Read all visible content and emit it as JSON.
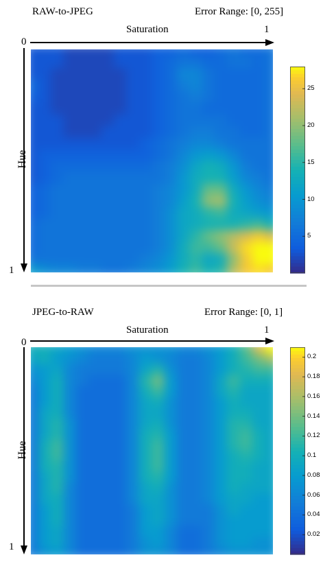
{
  "chart_data": [
    {
      "type": "heatmap",
      "title": "RAW-to-JPEG",
      "subtitle": "Error Range: [0, 255]",
      "xlabel": "Saturation",
      "ylabel": "Hue",
      "x_range": [
        0,
        1
      ],
      "y_range": [
        0,
        1
      ],
      "x_tick_labels": [
        "0",
        "1"
      ],
      "y_tick_labels": [
        "0",
        "1"
      ],
      "colormap": "parula",
      "colorbar": {
        "min": 0,
        "max": 28,
        "ticks": [
          5,
          10,
          15,
          20,
          25
        ]
      },
      "grid": false,
      "values": [
        [
          3,
          3,
          3,
          2,
          2,
          2,
          2,
          3,
          3,
          3,
          4,
          4,
          5,
          4,
          4,
          5,
          6,
          5,
          5,
          6
        ],
        [
          3,
          3,
          3,
          2,
          2,
          2,
          2,
          3,
          3,
          3,
          4,
          5,
          6,
          6,
          5,
          5,
          6,
          6,
          5,
          6
        ],
        [
          3,
          3,
          2,
          2,
          2,
          2,
          2,
          2,
          3,
          3,
          4,
          5,
          8,
          8,
          6,
          5,
          5,
          5,
          5,
          6
        ],
        [
          5,
          3,
          2,
          2,
          2,
          2,
          2,
          2,
          3,
          3,
          4,
          5,
          7,
          8,
          6,
          5,
          5,
          5,
          5,
          6
        ],
        [
          4,
          3,
          2,
          2,
          2,
          2,
          2,
          2,
          3,
          3,
          4,
          5,
          6,
          7,
          6,
          5,
          5,
          5,
          5,
          6
        ],
        [
          3,
          3,
          2,
          2,
          2,
          2,
          2,
          2,
          3,
          3,
          4,
          5,
          6,
          6,
          5,
          5,
          5,
          5,
          5,
          6
        ],
        [
          3,
          3,
          3,
          2,
          2,
          2,
          2,
          3,
          3,
          3,
          4,
          5,
          6,
          6,
          6,
          6,
          5,
          5,
          5,
          6
        ],
        [
          3,
          3,
          3,
          2,
          2,
          2,
          3,
          3,
          3,
          3,
          4,
          5,
          6,
          7,
          7,
          6,
          6,
          5,
          5,
          6
        ],
        [
          3,
          3,
          3,
          3,
          3,
          3,
          3,
          3,
          3,
          4,
          5,
          6,
          7,
          8,
          8,
          7,
          6,
          6,
          6,
          6
        ],
        [
          3,
          4,
          4,
          4,
          4,
          4,
          4,
          4,
          4,
          4,
          5,
          6,
          8,
          10,
          11,
          10,
          8,
          6,
          6,
          6
        ],
        [
          3,
          4,
          5,
          5,
          5,
          5,
          5,
          5,
          5,
          5,
          6,
          7,
          9,
          12,
          14,
          13,
          10,
          7,
          6,
          6
        ],
        [
          3,
          4,
          5,
          6,
          6,
          6,
          6,
          6,
          6,
          6,
          6,
          7,
          10,
          13,
          14,
          14,
          11,
          8,
          7,
          6
        ],
        [
          4,
          5,
          6,
          6,
          6,
          6,
          6,
          6,
          6,
          6,
          7,
          8,
          10,
          13,
          18,
          18,
          13,
          10,
          8,
          7
        ],
        [
          4,
          5,
          6,
          6,
          6,
          6,
          6,
          6,
          6,
          6,
          7,
          8,
          11,
          14,
          20,
          21,
          14,
          11,
          9,
          8
        ],
        [
          4,
          5,
          6,
          6,
          6,
          6,
          6,
          6,
          6,
          6,
          7,
          9,
          12,
          13,
          15,
          16,
          13,
          12,
          11,
          10
        ],
        [
          5,
          6,
          6,
          6,
          6,
          6,
          6,
          6,
          6,
          6,
          7,
          9,
          12,
          13,
          14,
          14,
          14,
          15,
          16,
          14
        ],
        [
          5,
          6,
          6,
          6,
          6,
          6,
          6,
          6,
          6,
          6,
          7,
          9,
          12,
          15,
          18,
          20,
          22,
          24,
          26,
          24
        ],
        [
          5,
          6,
          6,
          6,
          6,
          6,
          6,
          6,
          6,
          6,
          7,
          9,
          13,
          16,
          16,
          18,
          23,
          27,
          28,
          28
        ],
        [
          6,
          6,
          6,
          6,
          6,
          6,
          6,
          6,
          6,
          7,
          8,
          10,
          13,
          15,
          12,
          13,
          20,
          26,
          28,
          28
        ],
        [
          11,
          9,
          8,
          8,
          7,
          7,
          6,
          6,
          7,
          8,
          9,
          11,
          14,
          16,
          14,
          15,
          22,
          26,
          27,
          26
        ]
      ]
    },
    {
      "type": "heatmap",
      "title": "JPEG-to-RAW",
      "subtitle": "Error Range: [0, 1]",
      "xlabel": "Saturation",
      "ylabel": "Hue",
      "x_range": [
        0,
        1
      ],
      "y_range": [
        0,
        1
      ],
      "x_tick_labels": [
        "0",
        "1"
      ],
      "y_tick_labels": [
        "0",
        "1"
      ],
      "colormap": "parula",
      "colorbar": {
        "min": 0,
        "max": 0.21,
        "ticks": [
          0.02,
          0.04,
          0.06,
          0.08,
          0.1,
          0.12,
          0.14,
          0.16,
          0.18,
          0.2
        ]
      },
      "grid": false,
      "values": [
        [
          0.1,
          0.1,
          0.09,
          0.08,
          0.07,
          0.06,
          0.06,
          0.06,
          0.07,
          0.07,
          0.07,
          0.07,
          0.06,
          0.06,
          0.07,
          0.08,
          0.1,
          0.13,
          0.18,
          0.21
        ],
        [
          0.09,
          0.1,
          0.08,
          0.07,
          0.06,
          0.05,
          0.05,
          0.05,
          0.06,
          0.08,
          0.07,
          0.06,
          0.05,
          0.05,
          0.06,
          0.08,
          0.1,
          0.12,
          0.14,
          0.16
        ],
        [
          0.07,
          0.08,
          0.09,
          0.06,
          0.05,
          0.05,
          0.05,
          0.05,
          0.06,
          0.09,
          0.11,
          0.07,
          0.05,
          0.05,
          0.06,
          0.08,
          0.1,
          0.11,
          0.12,
          0.12
        ],
        [
          0.06,
          0.08,
          0.1,
          0.06,
          0.05,
          0.04,
          0.04,
          0.04,
          0.06,
          0.11,
          0.14,
          0.08,
          0.05,
          0.05,
          0.06,
          0.09,
          0.12,
          0.1,
          0.1,
          0.1
        ],
        [
          0.05,
          0.08,
          0.1,
          0.06,
          0.04,
          0.04,
          0.04,
          0.04,
          0.06,
          0.1,
          0.12,
          0.08,
          0.05,
          0.05,
          0.06,
          0.09,
          0.11,
          0.09,
          0.09,
          0.09
        ],
        [
          0.05,
          0.08,
          0.1,
          0.06,
          0.04,
          0.04,
          0.04,
          0.04,
          0.06,
          0.09,
          0.1,
          0.07,
          0.05,
          0.05,
          0.06,
          0.08,
          0.1,
          0.09,
          0.09,
          0.09
        ],
        [
          0.05,
          0.09,
          0.1,
          0.06,
          0.04,
          0.04,
          0.04,
          0.04,
          0.06,
          0.09,
          0.09,
          0.07,
          0.05,
          0.05,
          0.06,
          0.08,
          0.1,
          0.1,
          0.09,
          0.09
        ],
        [
          0.05,
          0.09,
          0.11,
          0.07,
          0.04,
          0.04,
          0.04,
          0.04,
          0.06,
          0.09,
          0.1,
          0.07,
          0.05,
          0.05,
          0.06,
          0.08,
          0.11,
          0.11,
          0.09,
          0.09
        ],
        [
          0.05,
          0.09,
          0.11,
          0.07,
          0.04,
          0.04,
          0.04,
          0.04,
          0.06,
          0.1,
          0.11,
          0.08,
          0.05,
          0.05,
          0.06,
          0.08,
          0.11,
          0.12,
          0.1,
          0.09
        ],
        [
          0.05,
          0.1,
          0.12,
          0.07,
          0.04,
          0.04,
          0.04,
          0.04,
          0.06,
          0.1,
          0.12,
          0.08,
          0.05,
          0.05,
          0.06,
          0.08,
          0.11,
          0.12,
          0.1,
          0.09
        ],
        [
          0.05,
          0.1,
          0.12,
          0.07,
          0.04,
          0.04,
          0.04,
          0.04,
          0.06,
          0.1,
          0.12,
          0.08,
          0.05,
          0.05,
          0.06,
          0.08,
          0.1,
          0.11,
          0.1,
          0.09
        ],
        [
          0.05,
          0.1,
          0.11,
          0.07,
          0.04,
          0.04,
          0.04,
          0.04,
          0.06,
          0.1,
          0.12,
          0.08,
          0.05,
          0.05,
          0.06,
          0.08,
          0.1,
          0.1,
          0.09,
          0.09
        ],
        [
          0.05,
          0.09,
          0.11,
          0.07,
          0.04,
          0.04,
          0.04,
          0.04,
          0.06,
          0.1,
          0.11,
          0.08,
          0.05,
          0.05,
          0.06,
          0.08,
          0.1,
          0.1,
          0.09,
          0.09
        ],
        [
          0.05,
          0.09,
          0.11,
          0.06,
          0.04,
          0.04,
          0.04,
          0.04,
          0.06,
          0.09,
          0.1,
          0.07,
          0.05,
          0.05,
          0.06,
          0.08,
          0.1,
          0.09,
          0.09,
          0.09
        ],
        [
          0.05,
          0.09,
          0.1,
          0.06,
          0.04,
          0.04,
          0.04,
          0.04,
          0.06,
          0.09,
          0.09,
          0.07,
          0.05,
          0.05,
          0.06,
          0.08,
          0.09,
          0.09,
          0.08,
          0.08
        ],
        [
          0.05,
          0.08,
          0.1,
          0.06,
          0.04,
          0.04,
          0.04,
          0.04,
          0.05,
          0.08,
          0.09,
          0.07,
          0.05,
          0.05,
          0.05,
          0.07,
          0.09,
          0.08,
          0.08,
          0.08
        ],
        [
          0.05,
          0.08,
          0.1,
          0.06,
          0.04,
          0.04,
          0.04,
          0.04,
          0.05,
          0.08,
          0.09,
          0.07,
          0.05,
          0.05,
          0.05,
          0.07,
          0.08,
          0.08,
          0.08,
          0.08
        ],
        [
          0.05,
          0.08,
          0.09,
          0.06,
          0.04,
          0.04,
          0.04,
          0.04,
          0.05,
          0.08,
          0.08,
          0.06,
          0.04,
          0.04,
          0.05,
          0.07,
          0.08,
          0.08,
          0.08,
          0.08
        ],
        [
          0.05,
          0.08,
          0.09,
          0.06,
          0.04,
          0.04,
          0.04,
          0.04,
          0.05,
          0.07,
          0.08,
          0.06,
          0.04,
          0.04,
          0.05,
          0.07,
          0.08,
          0.08,
          0.07,
          0.07
        ],
        [
          0.05,
          0.07,
          0.08,
          0.06,
          0.04,
          0.04,
          0.04,
          0.04,
          0.05,
          0.07,
          0.07,
          0.06,
          0.04,
          0.04,
          0.05,
          0.06,
          0.07,
          0.07,
          0.07,
          0.07
        ]
      ]
    }
  ]
}
